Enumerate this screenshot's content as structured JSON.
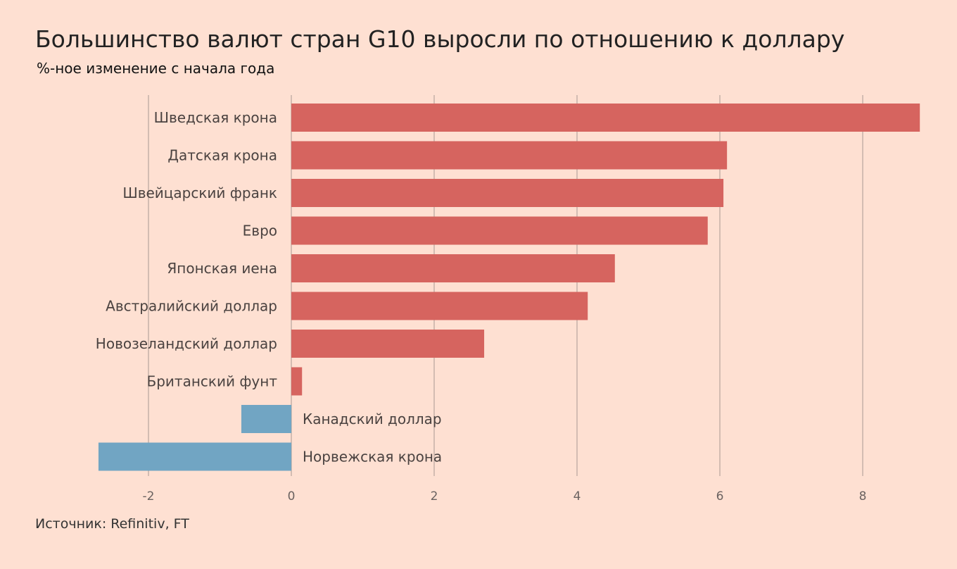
{
  "title": "Большинство валют стран G10 выросли по отношению к доллару",
  "subtitle": "%-ное изменение с начала года",
  "source": "Источник: Refinitiv, FT",
  "colors": {
    "positive": "#d6645f",
    "negative": "#71a5c3",
    "background": "#fee0d2",
    "grid": "#a89892"
  },
  "chart_data": {
    "type": "bar",
    "orientation": "horizontal",
    "categories": [
      "Шведская крона",
      "Датская крона",
      "Швейцарский франк",
      "Евро",
      "Японская иена",
      "Австралийский доллар",
      "Новозеландский доллар",
      "Британский фунт",
      "Канадский доллар",
      "Норвежская крона"
    ],
    "values": [
      8.8,
      6.1,
      6.05,
      5.83,
      4.53,
      4.15,
      2.7,
      0.15,
      -0.7,
      -2.7
    ],
    "xlim": [
      -2.7,
      8.8
    ],
    "xticks": [
      -2,
      0,
      2,
      4,
      6,
      8
    ],
    "xtick_labels": [
      "-2",
      "0",
      "2",
      "4",
      "6",
      "8"
    ],
    "grid": "vertical"
  }
}
